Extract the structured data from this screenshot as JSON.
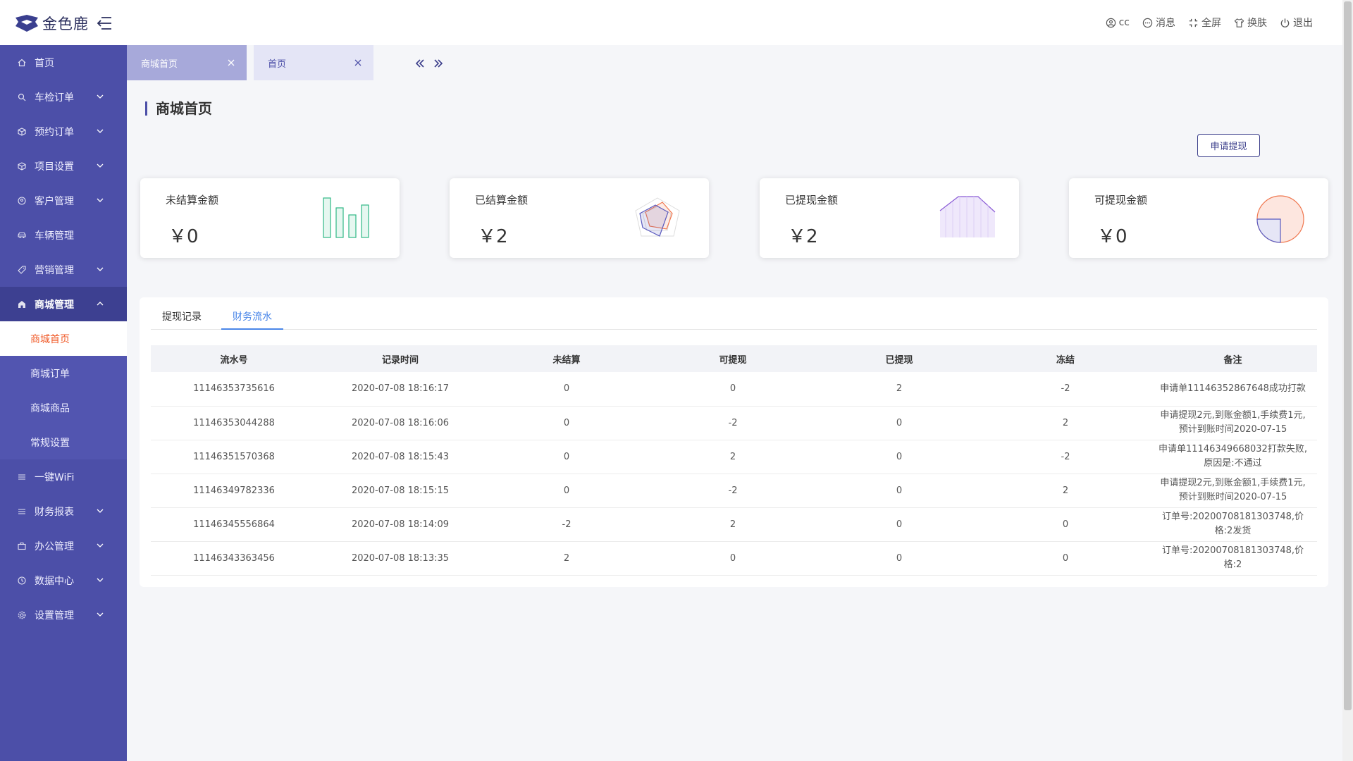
{
  "brand": {
    "name": "金色鹿"
  },
  "header": {
    "actions": [
      {
        "label": "cc",
        "icon": "user-icon"
      },
      {
        "label": "消息",
        "icon": "message-icon"
      },
      {
        "label": "全屏",
        "icon": "fullscreen-icon"
      },
      {
        "label": "换肤",
        "icon": "skin-icon"
      },
      {
        "label": "退出",
        "icon": "power-icon"
      }
    ]
  },
  "sidebar": {
    "items": [
      {
        "label": "首页",
        "icon": "home-icon"
      },
      {
        "label": "车检订单",
        "icon": "search-icon"
      },
      {
        "label": "预约订单",
        "icon": "cube-icon"
      },
      {
        "label": "项目设置",
        "icon": "cube-icon"
      },
      {
        "label": "客户管理",
        "icon": "user-icon"
      },
      {
        "label": "车辆管理",
        "icon": "car-icon"
      },
      {
        "label": "营销管理",
        "icon": "tag-icon"
      },
      {
        "label": "商城管理",
        "icon": "shop-icon"
      },
      {
        "label": "一键WiFi",
        "icon": "list-icon"
      },
      {
        "label": "财务报表",
        "icon": "list-icon"
      },
      {
        "label": "办公管理",
        "icon": "briefcase-icon"
      },
      {
        "label": "数据中心",
        "icon": "clock-icon"
      },
      {
        "label": "设置管理",
        "icon": "gear-icon"
      }
    ],
    "submenu": [
      {
        "label": "商城首页"
      },
      {
        "label": "商城订单"
      },
      {
        "label": "商城商品"
      },
      {
        "label": "常规设置"
      }
    ]
  },
  "tabs": [
    {
      "label": "商城首页"
    },
    {
      "label": "首页"
    }
  ],
  "page": {
    "title": "商城首页",
    "apply_button": "申请提现"
  },
  "cards": [
    {
      "label": "未结算金额",
      "amount": "￥0",
      "chart_icon": "bar-chart-icon"
    },
    {
      "label": "已结算金额",
      "amount": "￥2",
      "chart_icon": "radar-chart-icon"
    },
    {
      "label": "已提现金额",
      "amount": "￥2",
      "chart_icon": "area-chart-icon"
    },
    {
      "label": "可提现金额",
      "amount": "￥0",
      "chart_icon": "pie-chart-icon"
    }
  ],
  "subtabs": [
    {
      "label": "提现记录"
    },
    {
      "label": "财务流水"
    }
  ],
  "table": {
    "columns": [
      "流水号",
      "记录时间",
      "未结算",
      "可提现",
      "已提现",
      "冻结",
      "备注"
    ],
    "rows": [
      [
        "11146353735616",
        "2020-07-08 18:16:17",
        "0",
        "0",
        "2",
        "-2",
        "申请单11146352867648成功打款"
      ],
      [
        "11146353044288",
        "2020-07-08 18:16:06",
        "0",
        "-2",
        "0",
        "2",
        "申请提现2元,到账金额1,手续费1元,预计到账时间2020-07-15"
      ],
      [
        "11146351570368",
        "2020-07-08 18:15:43",
        "0",
        "2",
        "0",
        "-2",
        "申请单11146349668032打款失败,原因是:不通过"
      ],
      [
        "11146349782336",
        "2020-07-08 18:15:15",
        "0",
        "-2",
        "0",
        "2",
        "申请提现2元,到账金额1,手续费1元,预计到账时间2020-07-15"
      ],
      [
        "11146345556864",
        "2020-07-08 18:14:09",
        "-2",
        "2",
        "0",
        "0",
        "订单号:202007081813​03748,价格:2发货"
      ],
      [
        "11146343363456",
        "2020-07-08 18:13:35",
        "2",
        "0",
        "0",
        "0",
        "订单号:20200708181303748,价格:2"
      ]
    ]
  },
  "colors": {
    "sidebar": "#4c4fa8",
    "sidebar_active": "#3d4091",
    "submenu_current_text": "#f05a28",
    "tab_active": "#a7a9da",
    "subtab_active": "#4a86e8"
  }
}
